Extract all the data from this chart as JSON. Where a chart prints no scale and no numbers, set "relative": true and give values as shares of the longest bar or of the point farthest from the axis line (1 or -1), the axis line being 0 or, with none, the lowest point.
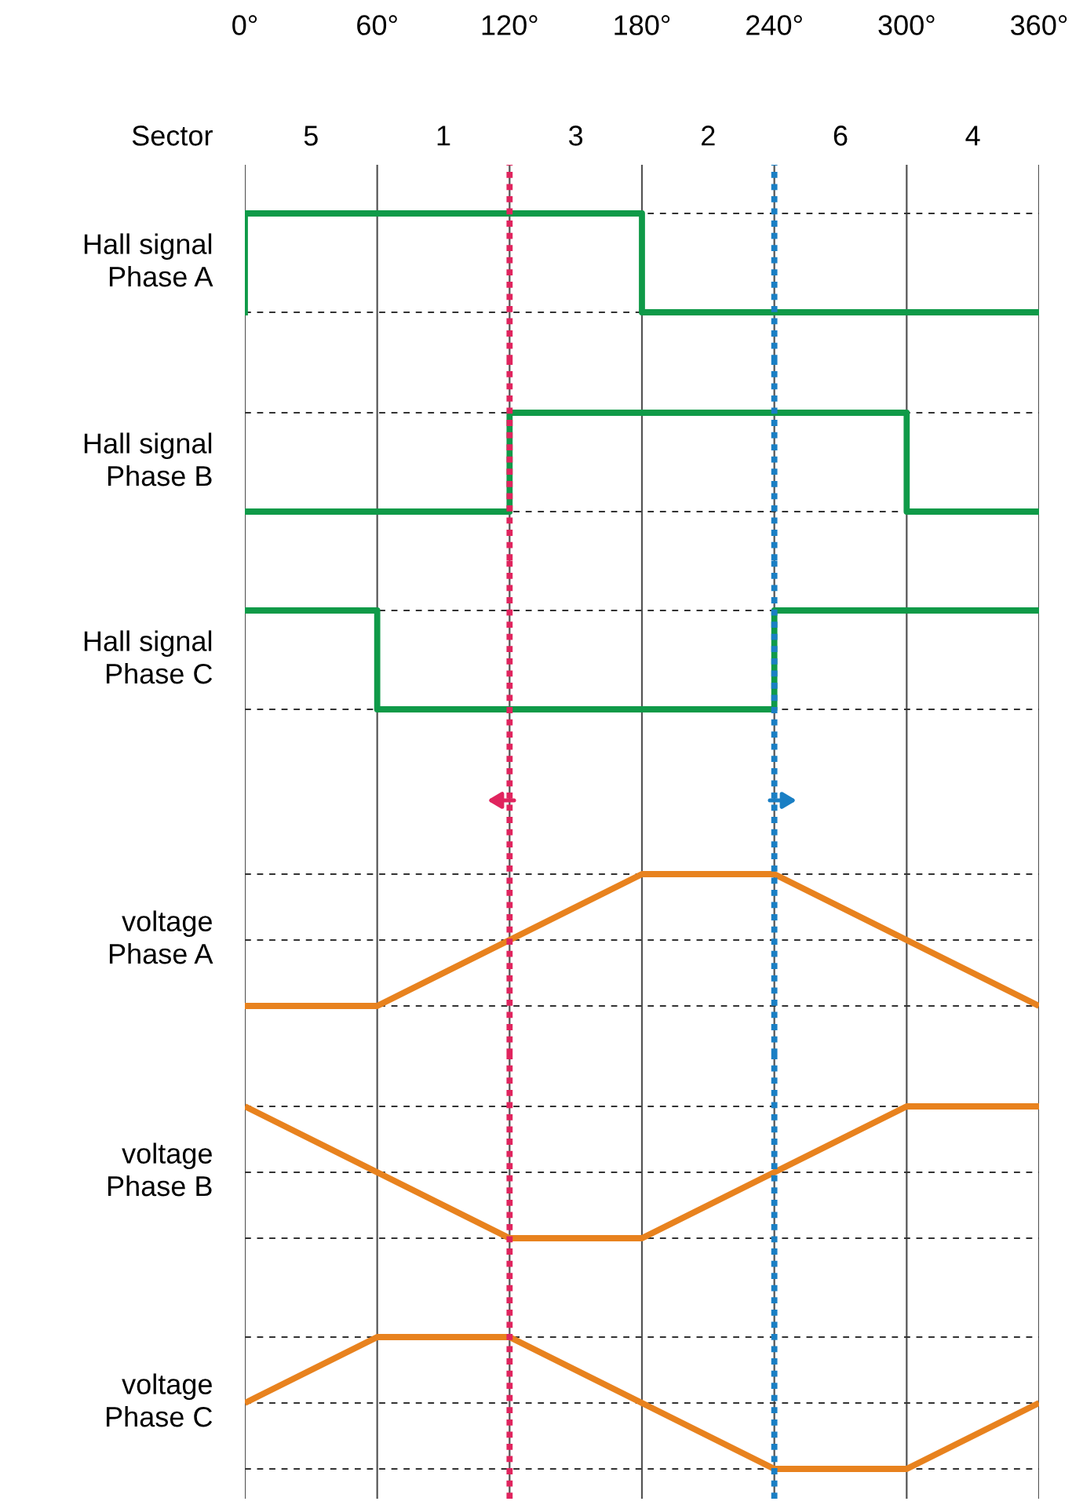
{
  "chart_data": [
    {
      "type": "step",
      "ylabel": "Hall signal\nPhase A",
      "relative": true,
      "x": [
        0,
        0,
        180,
        360
      ],
      "xlim": [
        0,
        360
      ],
      "xticks": [
        {
          "value": 0,
          "label": "0°"
        },
        {
          "value": 60,
          "label": "60°"
        },
        {
          "value": 120,
          "label": "120°"
        },
        {
          "value": 180,
          "label": "180°"
        },
        {
          "value": 240,
          "label": "240°"
        },
        {
          "value": 300,
          "label": "300°"
        },
        {
          "value": 360,
          "label": "360°"
        }
      ],
      "tick_labels": "x",
      "grid": "x",
      "series": [
        {
          "color": "#0f9a48",
          "values": [
            0,
            1,
            0,
            0
          ]
        }
      ],
      "ref_lines": [
        {
          "axis": "y",
          "value": 0,
          "color": "#333333",
          "line_style": "dashed"
        },
        {
          "axis": "y",
          "value": 1,
          "color": "#333333",
          "line_style": "dashed"
        },
        {
          "axis": "x",
          "value": 120,
          "color": "#e0245e",
          "line_style": "dotted"
        },
        {
          "axis": "x",
          "value": 240,
          "color": "#1a7fc4",
          "line_style": "dotted"
        }
      ],
      "annotations": [
        "Sector",
        "5",
        "1",
        "3",
        "2",
        "6",
        "4"
      ]
    },
    {
      "type": "step",
      "ylabel": "Hall signal\nPhase B",
      "relative": true,
      "x": [
        0,
        120,
        300,
        360
      ],
      "xlim": [
        0,
        360
      ],
      "xticks": [
        {
          "value": 0,
          "label": null
        },
        {
          "value": 60,
          "label": null
        },
        {
          "value": 120,
          "label": null
        },
        {
          "value": 180,
          "label": null
        },
        {
          "value": 240,
          "label": null
        },
        {
          "value": 300,
          "label": null
        },
        {
          "value": 360,
          "label": null
        }
      ],
      "tick_labels": false,
      "grid": "x",
      "series": [
        {
          "color": "#0f9a48",
          "values": [
            0,
            1,
            0,
            0
          ]
        }
      ],
      "ref_lines": [
        {
          "axis": "y",
          "value": 0,
          "color": "#333333",
          "line_style": "dashed"
        },
        {
          "axis": "y",
          "value": 1,
          "color": "#333333",
          "line_style": "dashed"
        },
        {
          "axis": "x",
          "value": 120,
          "color": "#e0245e",
          "line_style": "dotted"
        },
        {
          "axis": "x",
          "value": 240,
          "color": "#1a7fc4",
          "line_style": "dotted"
        }
      ]
    },
    {
      "type": "step",
      "ylabel": "Hall signal\nPhase C",
      "relative": true,
      "x": [
        0,
        60,
        240,
        360
      ],
      "xlim": [
        0,
        360
      ],
      "xticks": [
        {
          "value": 0,
          "label": null
        },
        {
          "value": 60,
          "label": null
        },
        {
          "value": 120,
          "label": null
        },
        {
          "value": 180,
          "label": null
        },
        {
          "value": 240,
          "label": null
        },
        {
          "value": 300,
          "label": null
        },
        {
          "value": 360,
          "label": null
        }
      ],
      "tick_labels": false,
      "grid": "x",
      "series": [
        {
          "color": "#0f9a48",
          "values": [
            1,
            0,
            1,
            1
          ]
        }
      ],
      "ref_lines": [
        {
          "axis": "y",
          "value": 0,
          "color": "#333333",
          "line_style": "dashed"
        },
        {
          "axis": "y",
          "value": 1,
          "color": "#333333",
          "line_style": "dashed"
        },
        {
          "axis": "x",
          "value": 120,
          "color": "#e0245e",
          "line_style": "dotted"
        },
        {
          "axis": "x",
          "value": 240,
          "color": "#1a7fc4",
          "line_style": "dotted"
        }
      ]
    },
    {
      "type": "line",
      "ylabel": "voltage\nPhase A",
      "relative": true,
      "x": [
        0,
        60,
        180,
        240,
        360
      ],
      "xlim": [
        0,
        360
      ],
      "xticks": [
        {
          "value": 0,
          "label": null
        },
        {
          "value": 60,
          "label": null
        },
        {
          "value": 120,
          "label": null
        },
        {
          "value": 180,
          "label": null
        },
        {
          "value": 240,
          "label": null
        },
        {
          "value": 300,
          "label": null
        },
        {
          "value": 360,
          "label": null
        }
      ],
      "tick_labels": false,
      "grid": "x",
      "series": [
        {
          "color": "#e8821e",
          "values": [
            0,
            0,
            1,
            1,
            0
          ]
        }
      ],
      "ref_lines": [
        {
          "axis": "y",
          "value": 0,
          "color": "#333333",
          "line_style": "dashed"
        },
        {
          "axis": "y",
          "value": 0.5,
          "color": "#333333",
          "line_style": "dashed"
        },
        {
          "axis": "y",
          "value": 1,
          "color": "#333333",
          "line_style": "dashed"
        },
        {
          "axis": "x",
          "value": 120,
          "color": "#e0245e",
          "line_style": "dotted"
        },
        {
          "axis": "x",
          "value": 240,
          "color": "#1a7fc4",
          "line_style": "dotted"
        }
      ]
    },
    {
      "type": "line",
      "ylabel": "voltage\nPhase B",
      "relative": true,
      "x": [
        0,
        120,
        180,
        300,
        360
      ],
      "xlim": [
        0,
        360
      ],
      "xticks": [
        {
          "value": 0,
          "label": null
        },
        {
          "value": 60,
          "label": null
        },
        {
          "value": 120,
          "label": null
        },
        {
          "value": 180,
          "label": null
        },
        {
          "value": 240,
          "label": null
        },
        {
          "value": 300,
          "label": null
        },
        {
          "value": 360,
          "label": null
        }
      ],
      "tick_labels": false,
      "grid": "x",
      "series": [
        {
          "color": "#e8821e",
          "values": [
            1,
            0,
            0,
            1,
            1
          ]
        }
      ],
      "ref_lines": [
        {
          "axis": "y",
          "value": 0,
          "color": "#333333",
          "line_style": "dashed"
        },
        {
          "axis": "y",
          "value": 0.5,
          "color": "#333333",
          "line_style": "dashed"
        },
        {
          "axis": "y",
          "value": 1,
          "color": "#333333",
          "line_style": "dashed"
        },
        {
          "axis": "x",
          "value": 120,
          "color": "#e0245e",
          "line_style": "dotted"
        },
        {
          "axis": "x",
          "value": 240,
          "color": "#1a7fc4",
          "line_style": "dotted"
        }
      ]
    },
    {
      "type": "line",
      "ylabel": "voltage\nPhase C",
      "relative": true,
      "x": [
        0,
        60,
        120,
        240,
        300,
        360
      ],
      "xlim": [
        0,
        360
      ],
      "xticks": [
        {
          "value": 0,
          "label": null
        },
        {
          "value": 60,
          "label": null
        },
        {
          "value": 120,
          "label": null
        },
        {
          "value": 180,
          "label": null
        },
        {
          "value": 240,
          "label": null
        },
        {
          "value": 300,
          "label": null
        },
        {
          "value": 360,
          "label": null
        }
      ],
      "tick_labels": false,
      "grid": "x",
      "series": [
        {
          "color": "#e8821e",
          "values": [
            0.5,
            1,
            1,
            0,
            0,
            0.5
          ]
        }
      ],
      "ref_lines": [
        {
          "axis": "y",
          "value": 0,
          "color": "#333333",
          "line_style": "dashed"
        },
        {
          "axis": "y",
          "value": 0.5,
          "color": "#333333",
          "line_style": "dashed"
        },
        {
          "axis": "y",
          "value": 1,
          "color": "#333333",
          "line_style": "dashed"
        },
        {
          "axis": "x",
          "value": 120,
          "color": "#e0245e",
          "line_style": "dotted"
        },
        {
          "axis": "x",
          "value": 240,
          "color": "#1a7fc4",
          "line_style": "dotted"
        }
      ]
    }
  ]
}
